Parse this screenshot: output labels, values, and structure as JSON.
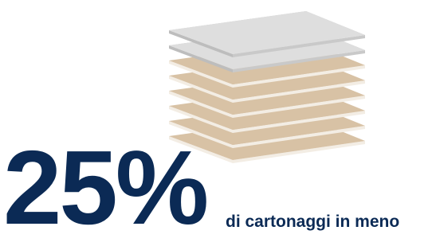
{
  "stat": {
    "value": "25%",
    "caption": "di cartonaggi in meno"
  }
}
